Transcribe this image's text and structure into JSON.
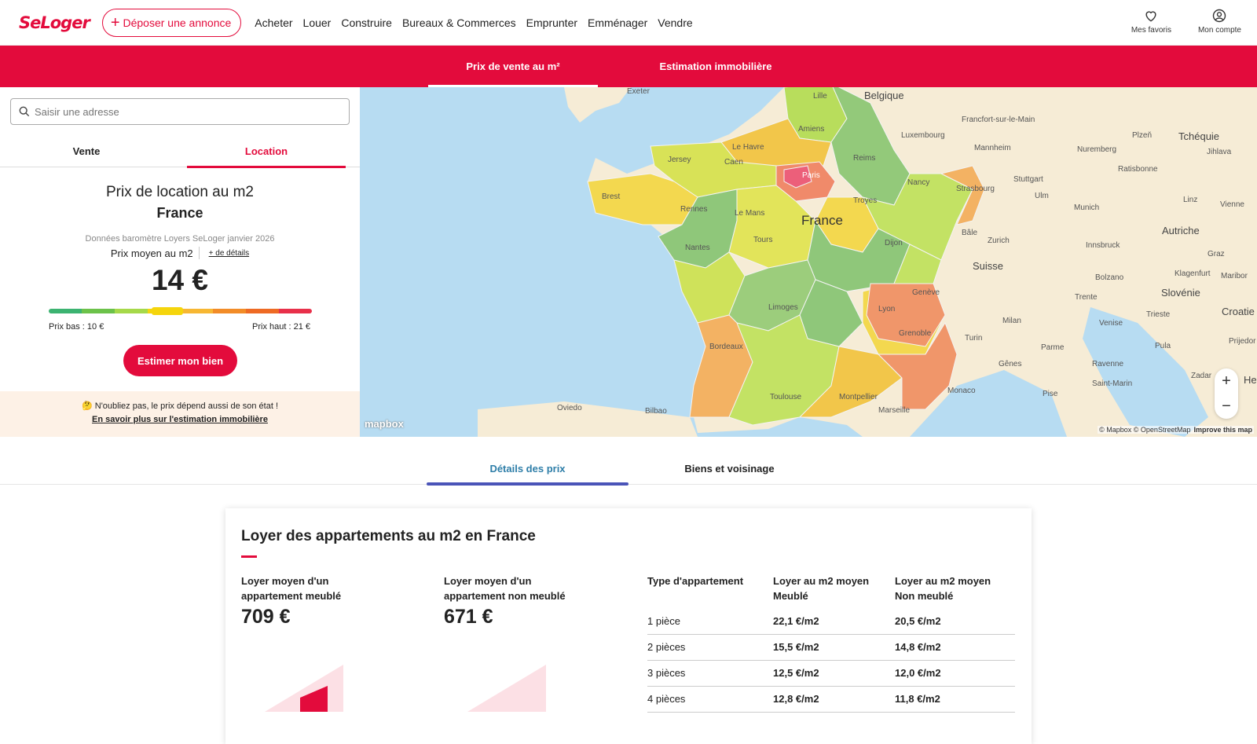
{
  "header": {
    "logo": "SeLoger",
    "post_ad_label": "Déposer une annonce",
    "nav": [
      "Acheter",
      "Louer",
      "Construire",
      "Bureaux & Commerces",
      "Emprunter",
      "Emménager",
      "Vendre"
    ],
    "favorites_label": "Mes favoris",
    "account_label": "Mon compte"
  },
  "redbar": {
    "tabs": [
      "Prix de vente au m²",
      "Estimation immobilière"
    ]
  },
  "left_panel": {
    "search_placeholder": "Saisir une adresse",
    "tabs": [
      "Vente",
      "Location"
    ],
    "title": "Prix de location au m2",
    "location": "France",
    "source": "Données baromètre Loyers SeLoger janvier 2026",
    "avg_label": "Prix moyen au m2",
    "details_link": "+ de détails",
    "price": "14 €",
    "low_price": "Prix bas : 10 €",
    "high_price": "Prix haut : 21 €",
    "gauge_position": 0.45,
    "estimate_button": "Estimer mon bien",
    "note_text": "🤔 N'oubliez pas, le prix dépend aussi de son état !",
    "note_link": "En savoir plus sur l'estimation immobilière"
  },
  "map": {
    "labels": {
      "exeter": "Exeter",
      "lille": "Lille",
      "belgique": "Belgique",
      "frankfurt": "Francfort-sur-le-Main",
      "tcheque": "Tchéquie",
      "luxembourg": "Luxembourg",
      "mannheim": "Mannheim",
      "nuremberg": "Nuremberg",
      "plzen": "Plzeň",
      "jihlava": "Jihlava",
      "amiens": "Amiens",
      "jersey": "Jersey",
      "lehavre": "Le Havre",
      "caen": "Caen",
      "reims": "Reims",
      "paris": "Paris",
      "ratisbonne": "Ratisbonne",
      "stuttgart": "Stuttgart",
      "nancy": "Nancy",
      "strasbourg": "Strasbourg",
      "linz": "Linz",
      "vienne": "Vienne",
      "brest": "Brest",
      "rennes": "Rennes",
      "lemans": "Le Mans",
      "troyes": "Troyes",
      "ulm": "Ulm",
      "munich": "Munich",
      "france": "France",
      "autriche": "Autriche",
      "bale": "Bâle",
      "zurich": "Zurich",
      "innsbruck": "Innsbruck",
      "tours": "Tours",
      "nantes": "Nantes",
      "dijon": "Dijon",
      "suisse": "Suisse",
      "graz": "Graz",
      "bolzano": "Bolzano",
      "klagenfurt": "Klagenfurt",
      "maribor": "Maribor",
      "geneve": "Genève",
      "trente": "Trente",
      "slovenie": "Slovénie",
      "limoges": "Limoges",
      "lyon": "Lyon",
      "milan": "Milan",
      "venise": "Venise",
      "trieste": "Trieste",
      "croatie": "Croatie",
      "grenoble": "Grenoble",
      "turin": "Turin",
      "bordeaux": "Bordeaux",
      "pula": "Pula",
      "prijedor": "Prijedor",
      "parme": "Parme",
      "genes": "Gênes",
      "ravenne": "Ravenne",
      "zadar": "Zadar",
      "toulouse": "Toulouse",
      "montpellier": "Montpellier",
      "monaco": "Monaco",
      "saintmarin": "Saint-Marin",
      "oviedo": "Oviedo",
      "bilbao": "Bilbao",
      "marseille": "Marseille",
      "pise": "Pise",
      "he": "He"
    },
    "mapbox": "mapbox",
    "attribution": "© Mapbox © OpenStreetMap",
    "improve": "Improve this map",
    "zoom_in": "+",
    "zoom_out": "−"
  },
  "detail_tabs": [
    "Détails des prix",
    "Biens et voisinage"
  ],
  "card": {
    "title": "Loyer des appartements au m2 en France",
    "furnished_label": "Loyer moyen d'un appartement meublé",
    "furnished_value": "709 €",
    "unfurnished_label": "Loyer moyen d'un appartement non meublé",
    "unfurnished_value": "671 €",
    "table": {
      "headers": [
        "Type d'appartement",
        "Loyer au m2 moyen Meublé",
        "Loyer au m2 moyen Non meublé"
      ],
      "rows": [
        [
          "1 pièce",
          "22,1 €/m2",
          "20,5 €/m2"
        ],
        [
          "2 pièces",
          "15,5 €/m2",
          "14,8 €/m2"
        ],
        [
          "3 pièces",
          "12,5 €/m2",
          "12,0 €/m2"
        ],
        [
          "4 pièces",
          "12,8 €/m2",
          "11,8 €/m2"
        ]
      ]
    }
  },
  "colors": {
    "brand": "#e30b3c",
    "active_tab": "#2e7ea8",
    "gauge": [
      "#3cb371",
      "#6cc24a",
      "#a6d94a",
      "#f5d50c",
      "#f7b733",
      "#f28c28",
      "#ee6a24",
      "#e8304a"
    ]
  }
}
